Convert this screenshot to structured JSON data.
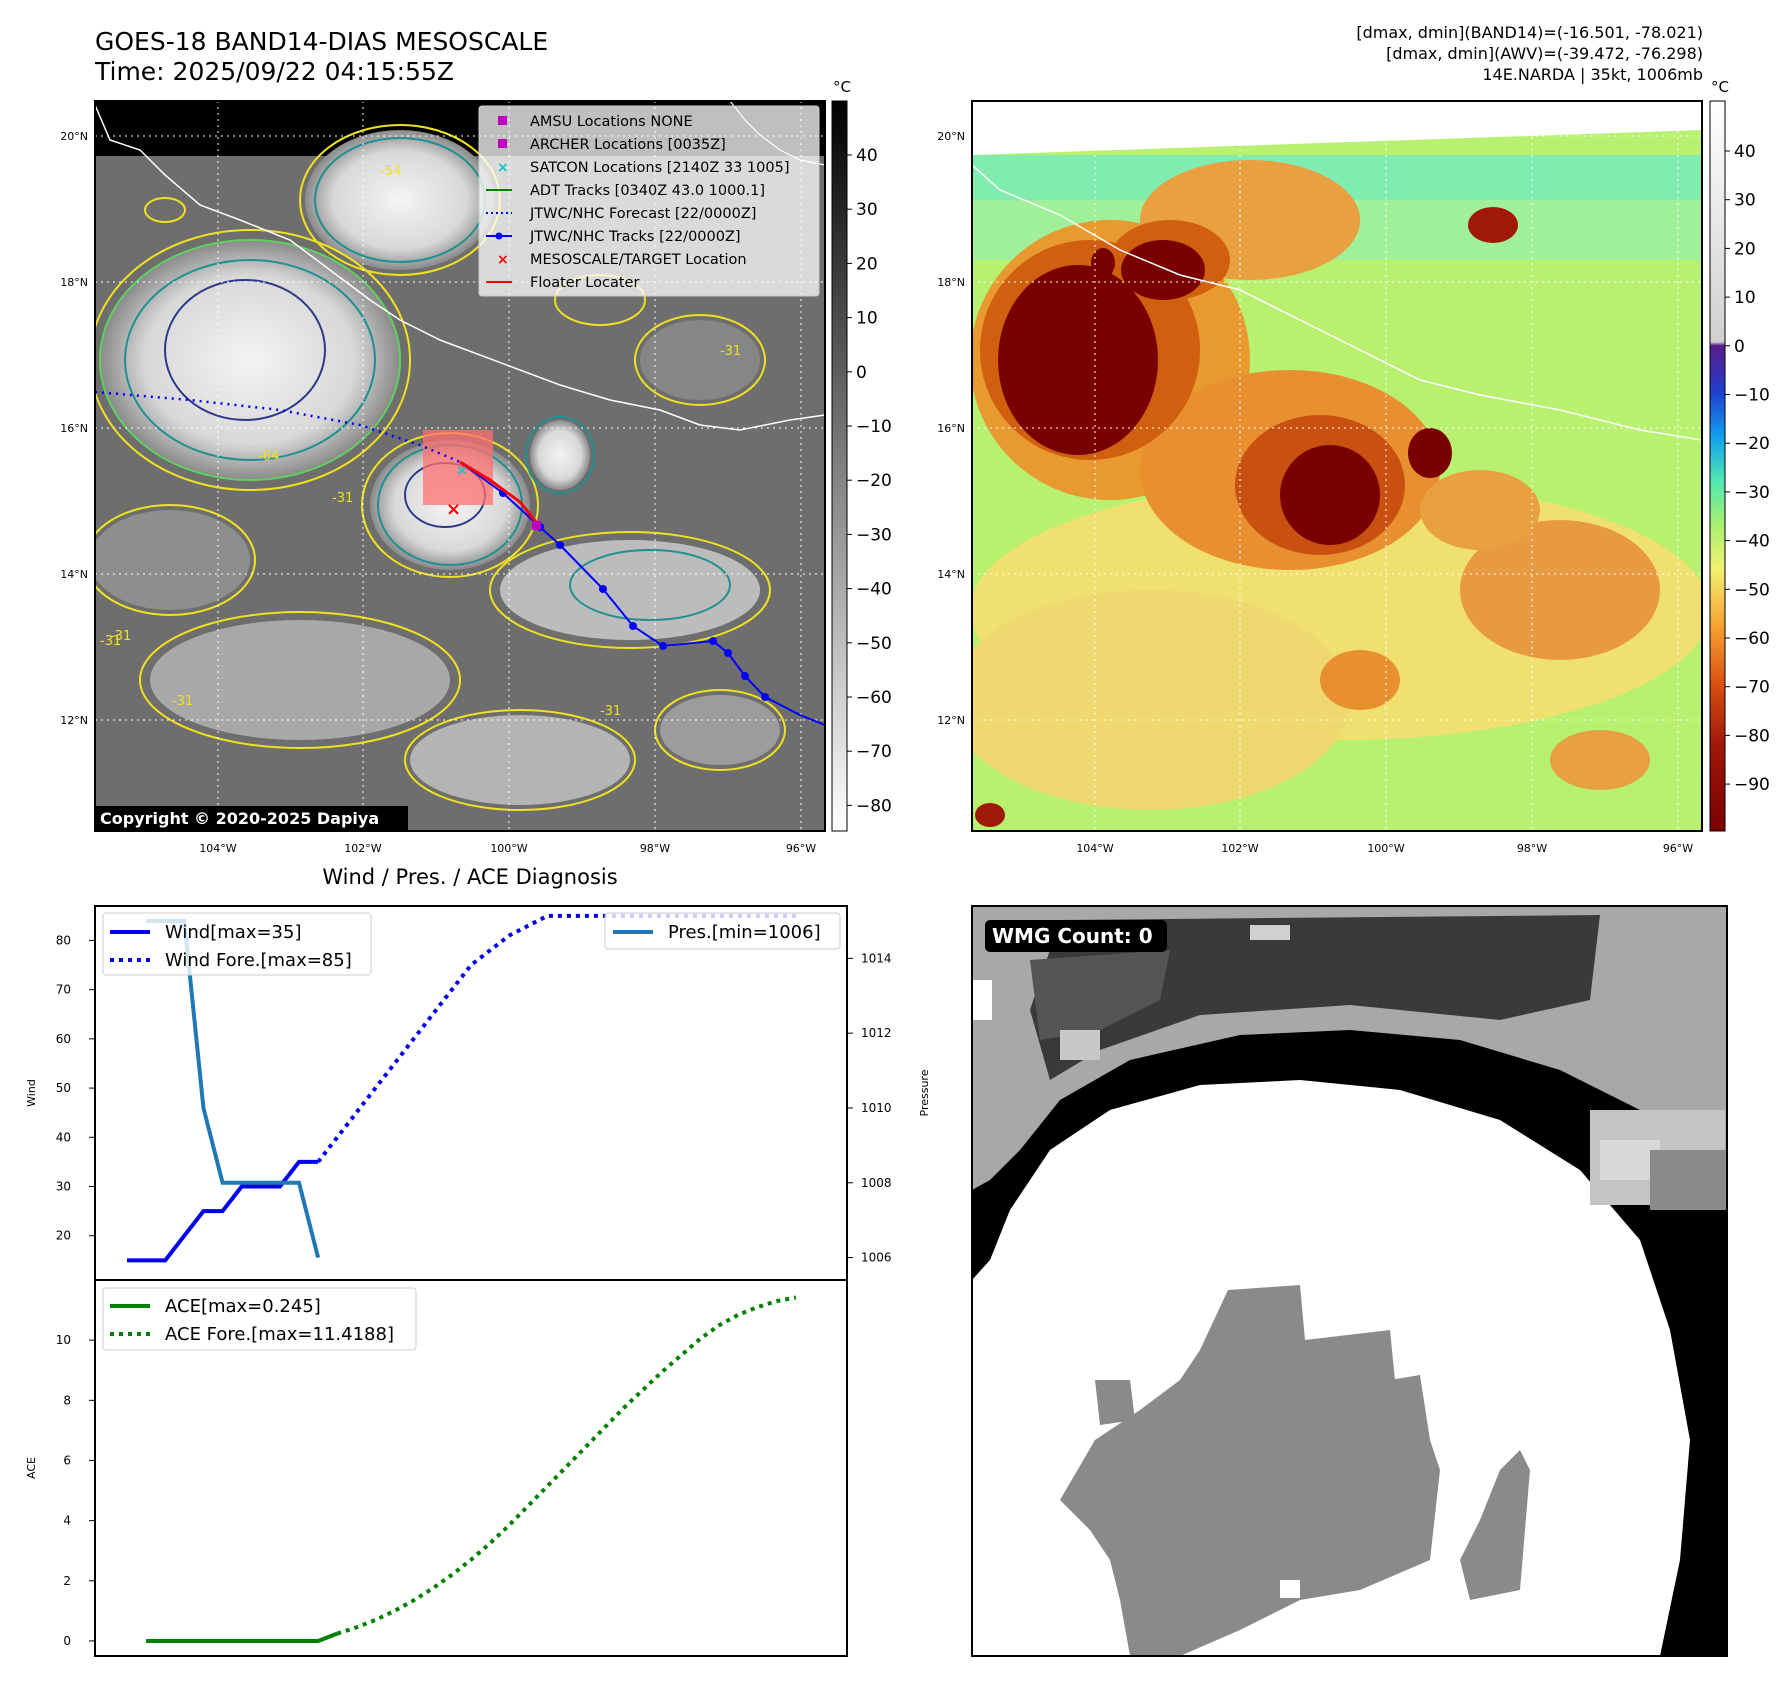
{
  "header": {
    "title_line1": "GOES-18 BAND14-DIAS MESOSCALE",
    "title_line2": "Time: 2025/09/22 04:15:55Z",
    "info_line1": "[dmax, dmin](BAND14)=(-16.501, -78.021)",
    "info_line2": "[dmax, dmin](AWV)=(-39.472, -76.298)",
    "info_line3": "14E.NARDA | 35kt, 1006mb"
  },
  "map_axes": {
    "lat_labels": [
      "20°N",
      "18°N",
      "16°N",
      "14°N",
      "12°N"
    ],
    "lon_labels": [
      "104°W",
      "102°W",
      "100°W",
      "98°W",
      "96°W"
    ],
    "lat_values": [
      20,
      18,
      16,
      14,
      12
    ],
    "lon_values": [
      -104,
      -102,
      -100,
      -98,
      -96
    ]
  },
  "panel_ir": {
    "legend": [
      {
        "marker": "square",
        "color": "#c000c0",
        "label": "AMSU Locations NONE"
      },
      {
        "marker": "square",
        "color": "#c000c0",
        "label": "ARCHER Locations [0035Z]"
      },
      {
        "marker": "x",
        "color": "#17becf",
        "label": "SATCON Locations [2140Z 33 1005]"
      },
      {
        "marker": "line",
        "color": "#008000",
        "label": "ADT Tracks [0340Z 43.0 1000.1]"
      },
      {
        "marker": "dotted",
        "color": "#0000ff",
        "label": "JTWC/NHC Forecast [22/0000Z]"
      },
      {
        "marker": "line-dot",
        "color": "#0000ff",
        "label": "JTWC/NHC Tracks [22/0000Z]"
      },
      {
        "marker": "x",
        "color": "#ff0000",
        "label": "MESOSCALE/TARGET Location"
      },
      {
        "marker": "line",
        "color": "#ff0000",
        "label": "Floater Locater"
      }
    ],
    "contour_labels": [
      "-54",
      "-31",
      "-31",
      "-31",
      "-31",
      "-64",
      "-31",
      "-31"
    ],
    "copyright": "Copyright © 2020-2025 Dapiya",
    "colorbar": {
      "unit": "°C",
      "ticks": [
        "40",
        "30",
        "20",
        "10",
        "0",
        "−10",
        "−20",
        "−30",
        "−40",
        "−50",
        "−60",
        "−70",
        "−80"
      ]
    }
  },
  "panel_awv": {
    "colorbar": {
      "unit": "°C",
      "ticks": [
        "40",
        "30",
        "20",
        "10",
        "0",
        "−10",
        "−20",
        "−30",
        "−40",
        "−50",
        "−60",
        "−70",
        "−80",
        "−90"
      ]
    }
  },
  "panel_wmg": {
    "label": "WMG Count: 0"
  },
  "chart_data": [
    {
      "type": "line",
      "title": "Wind / Pres. / ACE Diagnosis",
      "ylabel": "Wind",
      "ylabel_right": "Pressure",
      "ylim": [
        11,
        87
      ],
      "ylim_right": [
        1005.4,
        1015.4
      ],
      "yticks": [
        20,
        30,
        40,
        50,
        60,
        70,
        80
      ],
      "yticks_right": [
        1006,
        1008,
        1010,
        1012,
        1014
      ],
      "legend_left": [
        "Wind[max=35]",
        "Wind Fore.[max=85]"
      ],
      "legend_right": [
        "Pres.[min=1006]"
      ],
      "series": [
        {
          "name": "Wind[max=35]",
          "style": "solid",
          "color": "#0000ee",
          "axis": "left",
          "x": [
            0,
            1,
            2,
            3,
            4,
            5,
            6,
            7,
            8,
            9,
            10
          ],
          "values": [
            15,
            15,
            15,
            20,
            25,
            25,
            30,
            30,
            30,
            35,
            35
          ]
        },
        {
          "name": "Wind Fore.[max=85]",
          "style": "dotted",
          "color": "#0000ee",
          "axis": "left",
          "x": [
            10,
            11,
            12,
            13,
            14,
            15,
            16,
            17,
            18,
            19,
            20,
            21,
            22,
            23,
            24,
            25,
            26,
            27,
            28,
            29,
            30,
            31,
            32,
            33,
            34,
            35
          ],
          "values": [
            35,
            40,
            45,
            50,
            55,
            60,
            65,
            70,
            75,
            78,
            81,
            83,
            85,
            85,
            85,
            85,
            85,
            85,
            85,
            85,
            85,
            85,
            85,
            85,
            85,
            85
          ]
        },
        {
          "name": "Pres.[min=1006]",
          "style": "solid",
          "color": "#1f77b4",
          "axis": "right",
          "x": [
            1,
            2,
            3,
            4,
            5,
            6,
            7,
            8,
            9,
            10
          ],
          "values": [
            1015,
            1015,
            1015,
            1010,
            1008,
            1008,
            1008,
            1008,
            1008,
            1006
          ]
        }
      ]
    },
    {
      "type": "line",
      "ylabel": "ACE",
      "ylim": [
        -0.5,
        12
      ],
      "yticks": [
        0,
        2,
        4,
        6,
        8,
        10
      ],
      "legend": [
        "ACE[max=0.245]",
        "ACE Fore.[max=11.4188]"
      ],
      "series": [
        {
          "name": "ACE[max=0.245]",
          "style": "solid",
          "color": "#008000",
          "x": [
            1,
            2,
            3,
            4,
            5,
            6,
            7,
            8,
            9,
            10,
            11
          ],
          "values": [
            0,
            0,
            0,
            0,
            0,
            0,
            0,
            0,
            0,
            0,
            0.245
          ]
        },
        {
          "name": "ACE Fore.[max=11.4188]",
          "style": "dotted",
          "color": "#008000",
          "x": [
            11,
            12,
            13,
            14,
            15,
            16,
            17,
            18,
            19,
            20,
            21,
            22,
            23,
            24,
            25,
            26,
            27,
            28,
            29,
            30,
            31,
            32,
            33,
            34,
            35
          ],
          "values": [
            0.245,
            0.45,
            0.7,
            1.0,
            1.35,
            1.75,
            2.2,
            2.7,
            3.25,
            3.85,
            4.5,
            5.15,
            5.8,
            6.45,
            7.1,
            7.75,
            8.35,
            8.95,
            9.5,
            10.05,
            10.5,
            10.85,
            11.1,
            11.3,
            11.4188
          ]
        }
      ]
    }
  ]
}
